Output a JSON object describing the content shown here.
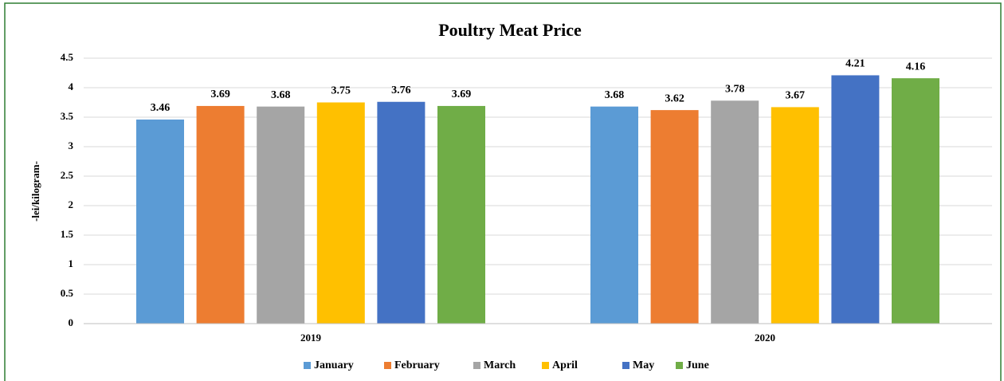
{
  "chart_data": {
    "type": "bar",
    "title": "Poultry Meat Price",
    "y_label": "-lei/kilogram-",
    "categories": [
      "2019",
      "2020"
    ],
    "series": [
      {
        "name": "January",
        "color": "#5b9bd5",
        "values": [
          3.46,
          3.68
        ]
      },
      {
        "name": "February",
        "color": "#ed7d31",
        "values": [
          3.69,
          3.62
        ]
      },
      {
        "name": "March",
        "color": "#a5a5a5",
        "values": [
          3.68,
          3.78
        ]
      },
      {
        "name": "April",
        "color": "#ffc000",
        "values": [
          3.75,
          3.67
        ]
      },
      {
        "name": "May",
        "color": "#4472c4",
        "values": [
          3.76,
          4.21
        ]
      },
      {
        "name": "June",
        "color": "#70ad47",
        "values": [
          3.69,
          4.16
        ]
      }
    ],
    "ylim": [
      0,
      4.5
    ],
    "yticks": [
      0,
      0.5,
      1,
      1.5,
      2,
      2.5,
      3,
      3.5,
      4,
      4.5
    ],
    "grid": true,
    "legend": "bottom"
  }
}
